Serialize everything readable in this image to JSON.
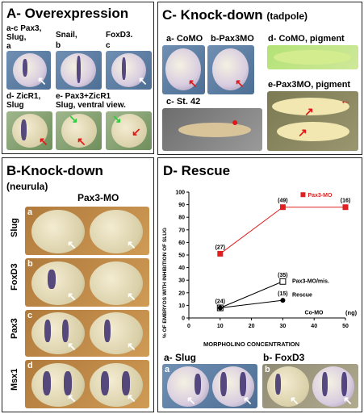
{
  "panelA": {
    "title": "A- Overexpression",
    "label_a": "a-c Pax3,",
    "label_a2": "Slug,",
    "label_a3": "a",
    "label_b": "Snail,",
    "label_b2": "b",
    "label_c": "FoxD3.",
    "label_c2": "c",
    "label_d": "d- ZicR1,",
    "label_d2": "Slug",
    "label_e": "e- Pax3+ZicR1",
    "label_e2": "Slug, ventral view."
  },
  "panelB": {
    "title": "B-Knock-down",
    "subtitle": "(neurula)",
    "column_header": "Pax3-MO",
    "rows": [
      {
        "letter": "a",
        "marker": "Slug"
      },
      {
        "letter": "b",
        "marker": "FoxD3"
      },
      {
        "letter": "c",
        "marker": "Pax3"
      },
      {
        "letter": "d",
        "marker": "Msx1"
      }
    ]
  },
  "panelC": {
    "title": "C- Knock-down",
    "subtitle": "(tadpole)",
    "label_a": "a- CoMO",
    "label_b": "b-Pax3MO",
    "label_c": "c- St. 42",
    "label_d": "d- CoMO, pigment",
    "label_e": "e-Pax3MO, pigment"
  },
  "panelD": {
    "title": "D- Rescue",
    "label_a": "a- Slug",
    "label_b": "b- FoxD3",
    "letter_a": "a",
    "letter_b": "b",
    "chart_data": {
      "type": "line",
      "xlabel": "MORPHOLINO CONCENTRATION",
      "xunit": "(ng)",
      "ylabel": "% OF EMBRYOS WITH INHIBITION OF SLUG",
      "xlim": [
        0,
        50
      ],
      "ylim": [
        0,
        100
      ],
      "xticks": [
        0,
        10,
        20,
        30,
        40,
        50
      ],
      "yticks": [
        0,
        10,
        20,
        30,
        40,
        50,
        60,
        70,
        80,
        90,
        100
      ],
      "series": [
        {
          "name": "Pax3-MO",
          "color": "#e02020",
          "marker": "filled-square",
          "points": [
            {
              "x": 10,
              "y": 51,
              "n": "(27)"
            },
            {
              "x": 30,
              "y": 88,
              "n": "(49)"
            },
            {
              "x": 50,
              "y": 88,
              "n": "(16)"
            }
          ]
        },
        {
          "name": "Pax3-MO/mis.",
          "color": "#000000",
          "marker": "open-square",
          "points": [
            {
              "x": 10,
              "y": 8,
              "n": "(24)"
            },
            {
              "x": 30,
              "y": 29,
              "n": "(35)"
            }
          ]
        },
        {
          "name": "Rescue",
          "color": "#000000",
          "marker": "filled-circle",
          "points": [
            {
              "x": 10,
              "y": 8,
              "n": ""
            },
            {
              "x": 30,
              "y": 14,
              "n": "(15)"
            }
          ]
        },
        {
          "name": "Co-MO",
          "color": "#000000",
          "marker": "none",
          "points": [
            {
              "x": 10,
              "y": 0,
              "n": ""
            },
            {
              "x": 50,
              "y": 0,
              "n": ""
            }
          ]
        }
      ]
    }
  }
}
